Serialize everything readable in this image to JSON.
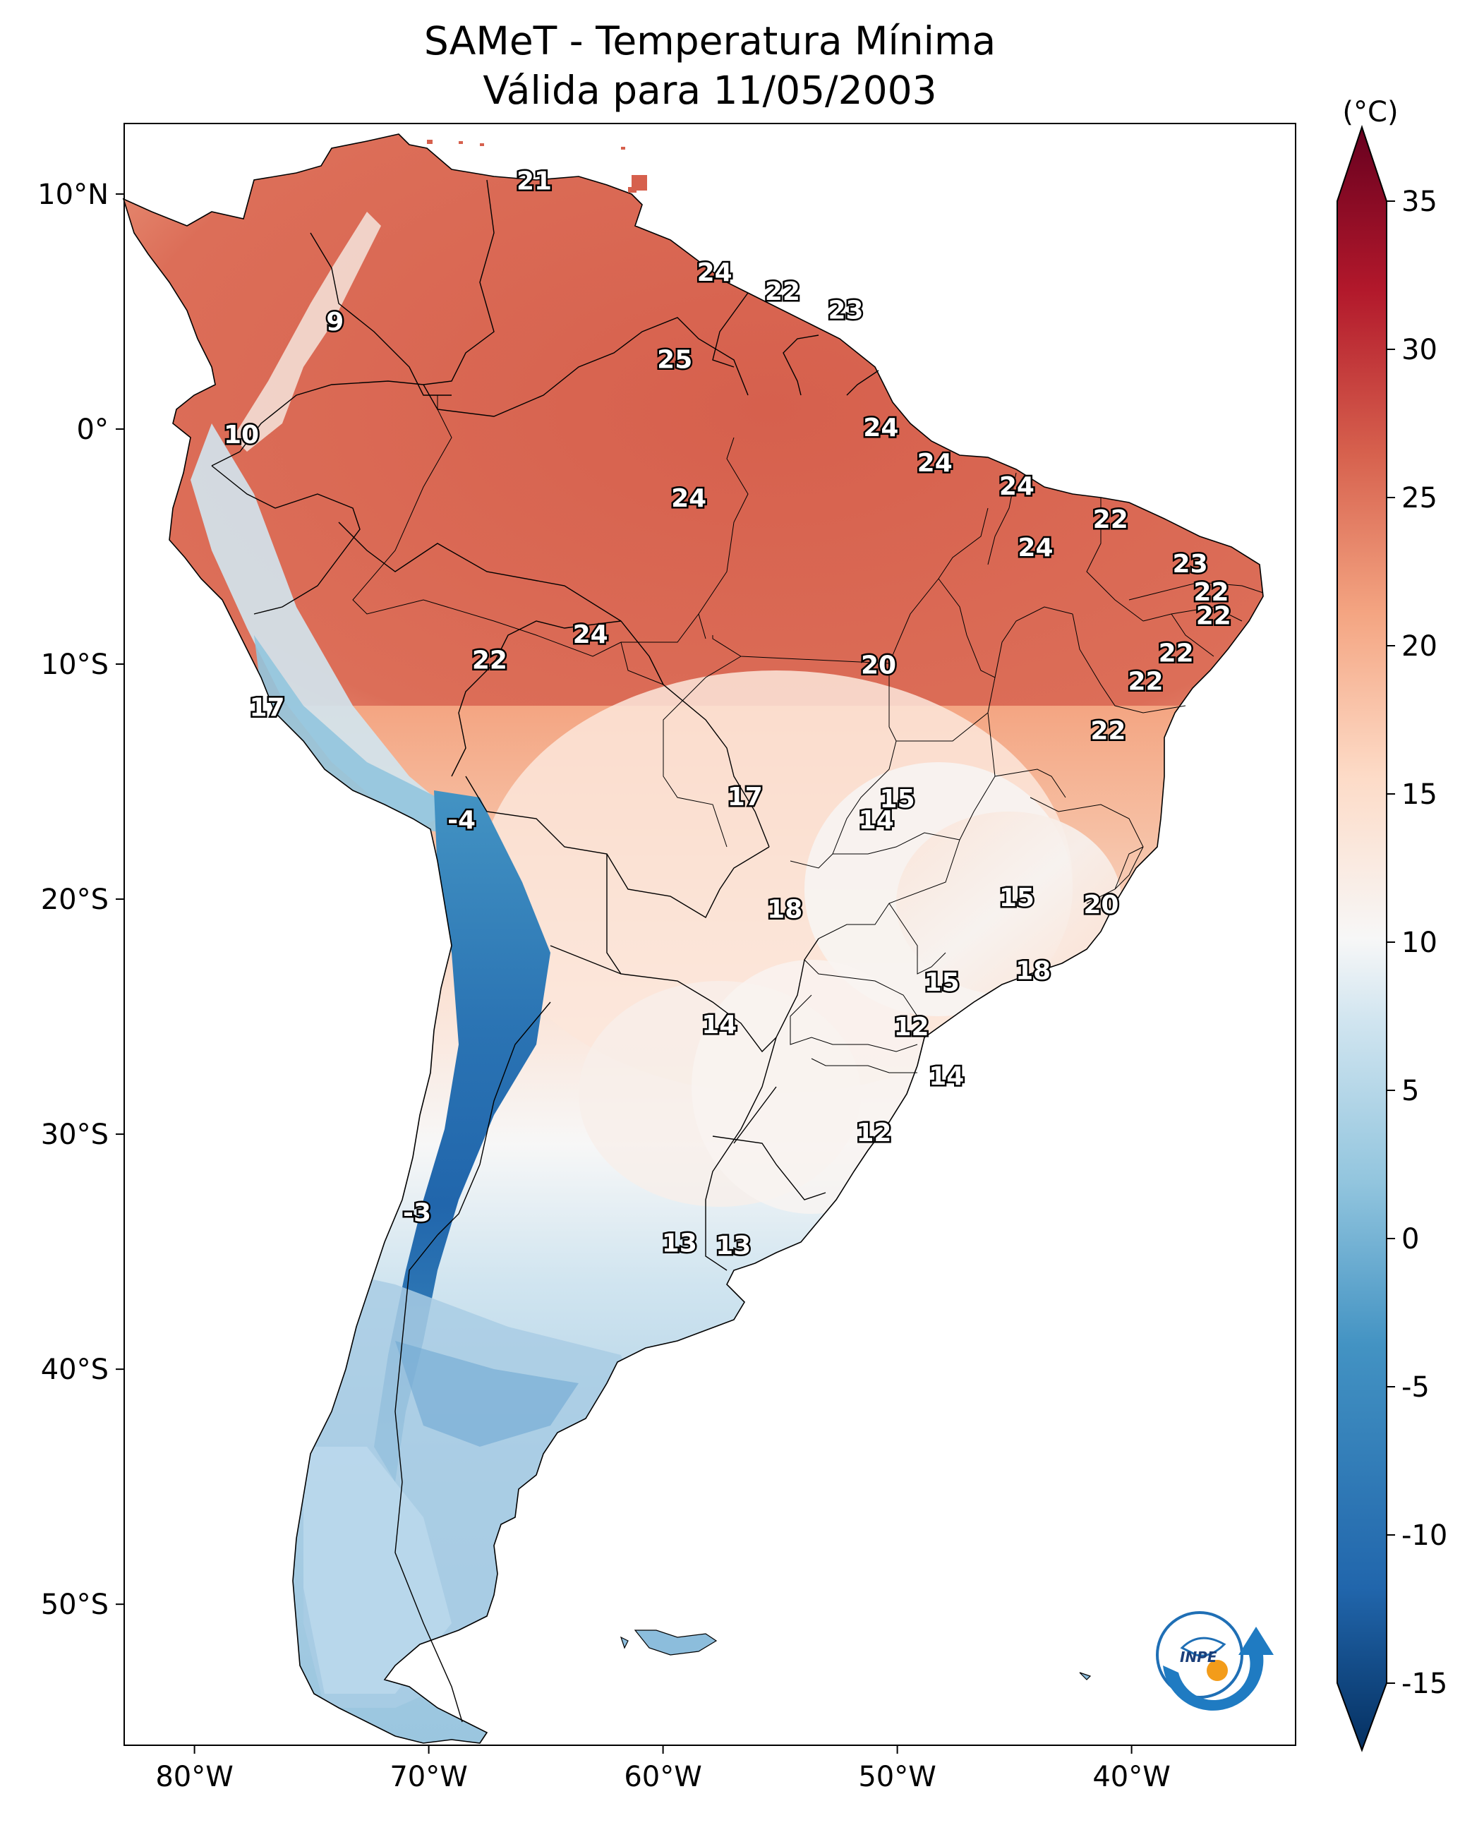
{
  "title": {
    "line1": "SAMeT - Temperatura Mínima",
    "line2": "Válida para 11/05/2003"
  },
  "map": {
    "lon_range": [
      -83,
      -33
    ],
    "lat_range": [
      -56,
      13
    ],
    "lon_ticks": [
      {
        "value": -80,
        "label": "80°W"
      },
      {
        "value": -70,
        "label": "70°W"
      },
      {
        "value": -60,
        "label": "60°W"
      },
      {
        "value": -50,
        "label": "50°W"
      },
      {
        "value": -40,
        "label": "40°W"
      }
    ],
    "lat_ticks": [
      {
        "value": 10,
        "label": "10°N"
      },
      {
        "value": 0,
        "label": "0°"
      },
      {
        "value": -10,
        "label": "10°S"
      },
      {
        "value": -20,
        "label": "20°S"
      },
      {
        "value": -30,
        "label": "30°S"
      },
      {
        "value": -40,
        "label": "40°S"
      },
      {
        "value": -50,
        "label": "50°S"
      }
    ]
  },
  "labels": [
    {
      "text": "21",
      "lon": -65.5,
      "lat": 10.5
    },
    {
      "text": "9",
      "lon": -74.0,
      "lat": 4.5
    },
    {
      "text": "10",
      "lon": -78.0,
      "lat": -0.3
    },
    {
      "text": "24",
      "lon": -57.8,
      "lat": 6.6
    },
    {
      "text": "22",
      "lon": -54.9,
      "lat": 5.8
    },
    {
      "text": "23",
      "lon": -52.2,
      "lat": 5.0
    },
    {
      "text": "25",
      "lon": -59.5,
      "lat": 2.9
    },
    {
      "text": "24",
      "lon": -50.7,
      "lat": 0.0
    },
    {
      "text": "24",
      "lon": -48.4,
      "lat": -1.5
    },
    {
      "text": "24",
      "lon": -44.9,
      "lat": -2.5
    },
    {
      "text": "24",
      "lon": -58.9,
      "lat": -3.0
    },
    {
      "text": "22",
      "lon": -40.9,
      "lat": -3.9
    },
    {
      "text": "24",
      "lon": -44.1,
      "lat": -5.1
    },
    {
      "text": "23",
      "lon": -37.5,
      "lat": -5.8
    },
    {
      "text": "22",
      "lon": -36.6,
      "lat": -7.0
    },
    {
      "text": "22",
      "lon": -36.5,
      "lat": -8.0
    },
    {
      "text": "22",
      "lon": -38.1,
      "lat": -9.6
    },
    {
      "text": "22",
      "lon": -39.4,
      "lat": -10.8
    },
    {
      "text": "22",
      "lon": -41.0,
      "lat": -12.9
    },
    {
      "text": "20",
      "lon": -50.8,
      "lat": -10.1
    },
    {
      "text": "24",
      "lon": -63.1,
      "lat": -8.8
    },
    {
      "text": "22",
      "lon": -67.4,
      "lat": -9.9
    },
    {
      "text": "17",
      "lon": -76.9,
      "lat": -11.9
    },
    {
      "text": "-4",
      "lon": -68.6,
      "lat": -16.7
    },
    {
      "text": "17",
      "lon": -56.5,
      "lat": -15.7
    },
    {
      "text": "15",
      "lon": -50.0,
      "lat": -15.8
    },
    {
      "text": "14",
      "lon": -50.9,
      "lat": -16.7
    },
    {
      "text": "15",
      "lon": -44.9,
      "lat": -20.0
    },
    {
      "text": "20",
      "lon": -41.3,
      "lat": -20.3
    },
    {
      "text": "18",
      "lon": -54.8,
      "lat": -20.5
    },
    {
      "text": "15",
      "lon": -48.1,
      "lat": -23.6
    },
    {
      "text": "18",
      "lon": -44.2,
      "lat": -23.1
    },
    {
      "text": "14",
      "lon": -57.6,
      "lat": -25.4
    },
    {
      "text": "12",
      "lon": -49.4,
      "lat": -25.5
    },
    {
      "text": "14",
      "lon": -47.9,
      "lat": -27.6
    },
    {
      "text": "12",
      "lon": -51.0,
      "lat": -30.0
    },
    {
      "text": "-3",
      "lon": -70.5,
      "lat": -33.4
    },
    {
      "text": "13",
      "lon": -59.3,
      "lat": -34.7
    },
    {
      "text": "13",
      "lon": -57.0,
      "lat": -34.8
    }
  ],
  "colorbar": {
    "unit": "(°C)",
    "ticks": [
      "35",
      "30",
      "25",
      "20",
      "15",
      "10",
      "5",
      "0",
      "-5",
      "-10",
      "-15"
    ],
    "colors": [
      "#053061",
      "#2166ac",
      "#4393c3",
      "#92c5de",
      "#d1e5f0",
      "#f7f7f7",
      "#fddbc7",
      "#f4a582",
      "#d6604d",
      "#b2182b",
      "#67001f"
    ]
  },
  "logo": {
    "text": "INPE"
  }
}
